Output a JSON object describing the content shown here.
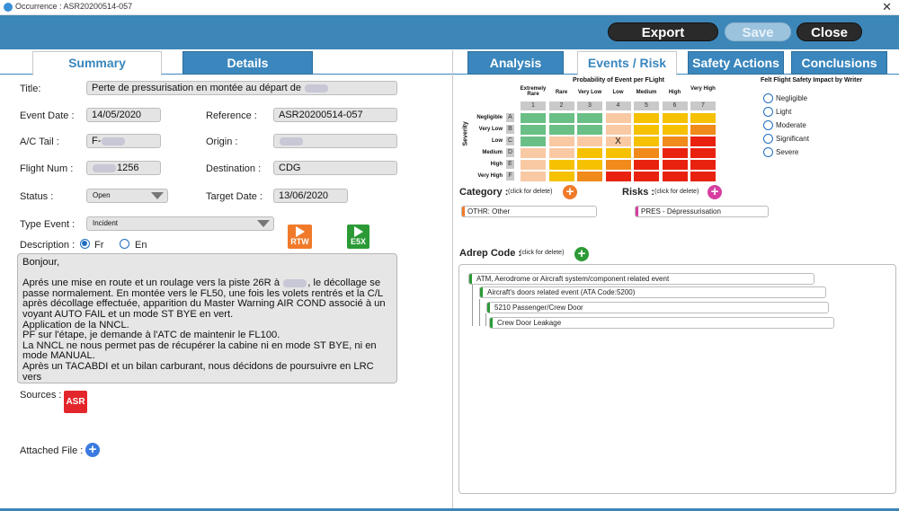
{
  "window": {
    "title": "Occurrence : ASR20200514-057",
    "close_glyph": "✕"
  },
  "toolbar": {
    "export": "Export",
    "save": "Save",
    "close": "Close"
  },
  "left_tabs": {
    "summary": "Summary",
    "details": "Details"
  },
  "right_tabs": {
    "analysis": "Analysis",
    "events_risk": "Events / Risk",
    "safety_actions": "Safety Actions",
    "conclusions": "Conclusions"
  },
  "form": {
    "title_label": "Title:",
    "title_value": "Perte de pressurisation en montée au départ de",
    "event_date_label": "Event Date :",
    "event_date_value": "14/05/2020",
    "reference_label": "Reference :",
    "reference_value": "ASR20200514-057",
    "ac_tail_label": "A/C Tail :",
    "ac_tail_value": "F-",
    "origin_label": "Origin :",
    "flight_num_label": "Flight Num :",
    "flight_num_value": "1256",
    "destination_label": "Destination :",
    "destination_value": "CDG",
    "status_label": "Status :",
    "status_value": "Open",
    "target_date_label": "Target Date :",
    "target_date_value": "13/06/2020",
    "type_event_label": "Type Event :",
    "type_event_value": "Incident",
    "description_label": "Description :",
    "lang_fr": "Fr",
    "lang_en": "En",
    "rtw": "RTW",
    "e5x": "E5X",
    "sources_label": "Sources :",
    "asr": "ASR",
    "attached_label": "Attached File :"
  },
  "description_lines": [
    "Bonjour,",
    "",
    "Aprés une mise en route et un roulage vers la piste 26R à",
    "le décollage se passe normalement. En montée vers le FL50, une fois les volets rentrés et la C/L après décollage effectuée, apparition du Master Warning AIR COND associé à un voyant AUTO FAIL et un mode ST BYE en vert.",
    "Application de la NNCL.",
    "PF sur l'étape, je demande à l'ATC de maintenir le FL100.",
    "La NNCL ne nous permet pas de récupérer la cabine ni en mode ST BYE, ni en mode MANUAL.",
    "Après un TACABDI et un bilan carburant, nous décidons de poursuivre en LRC vers"
  ],
  "matrix": {
    "title": "Probability of Event per FLight",
    "columns": [
      "Extremely Rare",
      "Rare",
      "Very Low",
      "Low",
      "Medium",
      "High",
      "Very High"
    ],
    "column_numbers": [
      "1",
      "2",
      "3",
      "4",
      "5",
      "6",
      "7"
    ],
    "severity_label": "Severity",
    "rows": [
      "Negligible",
      "Very Low",
      "Low",
      "Medium",
      "High",
      "Very High"
    ],
    "row_letters": [
      "A",
      "B",
      "C",
      "D",
      "E",
      "F"
    ],
    "cells": [
      [
        "#6abf86",
        "#6abf86",
        "#6abf86",
        "#f9c9a4",
        "#f5c100",
        "#f5c100",
        "#f5c100"
      ],
      [
        "#6abf86",
        "#6abf86",
        "#6abf86",
        "#f9c9a4",
        "#f5c100",
        "#f5c100",
        "#f08a1a"
      ],
      [
        "#6abf86",
        "#f9c9a4",
        "#f9c9a4",
        "#f9c9a4",
        "#f5c100",
        "#f08a1a",
        "#e8220f"
      ],
      [
        "#f9c9a4",
        "#f9c9a4",
        "#f5c100",
        "#f5c100",
        "#f08a1a",
        "#e8220f",
        "#e8220f"
      ],
      [
        "#f9c9a4",
        "#f5c100",
        "#f5c100",
        "#f08a1a",
        "#e8220f",
        "#e8220f",
        "#e8220f"
      ],
      [
        "#f9c9a4",
        "#f5c100",
        "#f08a1a",
        "#e8220f",
        "#e8220f",
        "#e8220f",
        "#e8220f"
      ]
    ],
    "marked_row": 2,
    "marked_col": 3,
    "mark": "X"
  },
  "impact": {
    "title": "Felt Flight Safety Impact by Writer",
    "options": [
      "Negligible",
      "Light",
      "Moderate",
      "Significant",
      "Severe"
    ]
  },
  "category": {
    "label": "Category :",
    "hint": "(click for delete)",
    "item": "OTHR: Other"
  },
  "risks": {
    "label": "Risks :",
    "hint": "(click for delete)",
    "item": "PRES - Dépressurisation"
  },
  "adrep": {
    "label": "Adrep Code :",
    "hint": "(click for delete)",
    "items": [
      "ATM, Aerodrome or Aircraft system/component related event",
      "Aircraft's doors related event (ATA Code:5200)",
      "5210 Passenger/Crew Door",
      "Crew Door Leakage"
    ]
  },
  "colors": {
    "brand_blue": "#3d86b8",
    "orange": "#f07a2a",
    "magenta": "#d63fa0",
    "green": "#2b9a36",
    "asr_red": "#e3262b"
  }
}
